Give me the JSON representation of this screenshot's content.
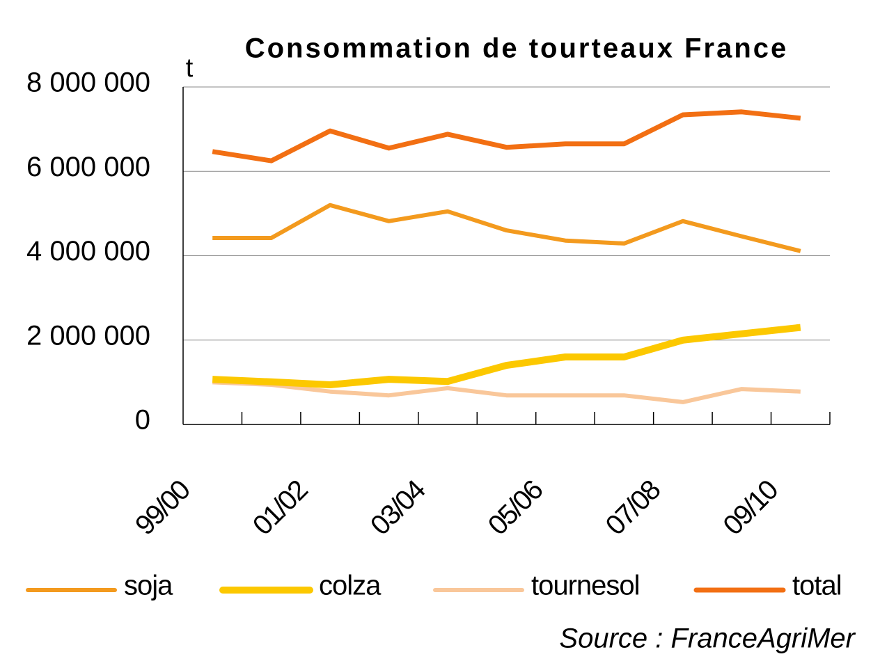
{
  "chart_data": {
    "type": "line",
    "title": "Consommation de tourteaux France",
    "y_unit": "t",
    "source": "Source  :  FranceAgriMer",
    "categories": [
      "99/00",
      null,
      "01/02",
      null,
      "03/04",
      null,
      "05/06",
      null,
      "07/08",
      null,
      "09/10"
    ],
    "series": [
      {
        "name": "soja",
        "color": "#f39a1e",
        "values": [
          4420000,
          4420000,
          5200000,
          4820000,
          5050000,
          4600000,
          4360000,
          4290000,
          4820000,
          4460000,
          4110000
        ]
      },
      {
        "name": "colza",
        "color": "#fcc800",
        "values": [
          1070000,
          1010000,
          940000,
          1070000,
          1020000,
          1400000,
          1600000,
          1600000,
          2000000,
          2150000,
          2300000
        ]
      },
      {
        "name": "tournesol",
        "color": "#f9c79a",
        "values": [
          1000000,
          940000,
          780000,
          690000,
          860000,
          690000,
          690000,
          690000,
          530000,
          840000,
          780000
        ]
      },
      {
        "name": "total",
        "color": "#f26f13",
        "values": [
          6470000,
          6250000,
          6960000,
          6550000,
          6880000,
          6570000,
          6650000,
          6650000,
          7340000,
          7410000,
          7260000
        ]
      }
    ],
    "ylim": [
      0,
      8000000
    ],
    "yticks": [
      0,
      {
        "value": 2000000,
        "label": "2 000 000"
      },
      {
        "value": 4000000,
        "label": "4 000 000"
      },
      {
        "value": 6000000,
        "label": "6 000 000"
      },
      {
        "value": 8000000,
        "label": "8 000 000"
      }
    ],
    "grid": true,
    "legend": "bottom"
  }
}
